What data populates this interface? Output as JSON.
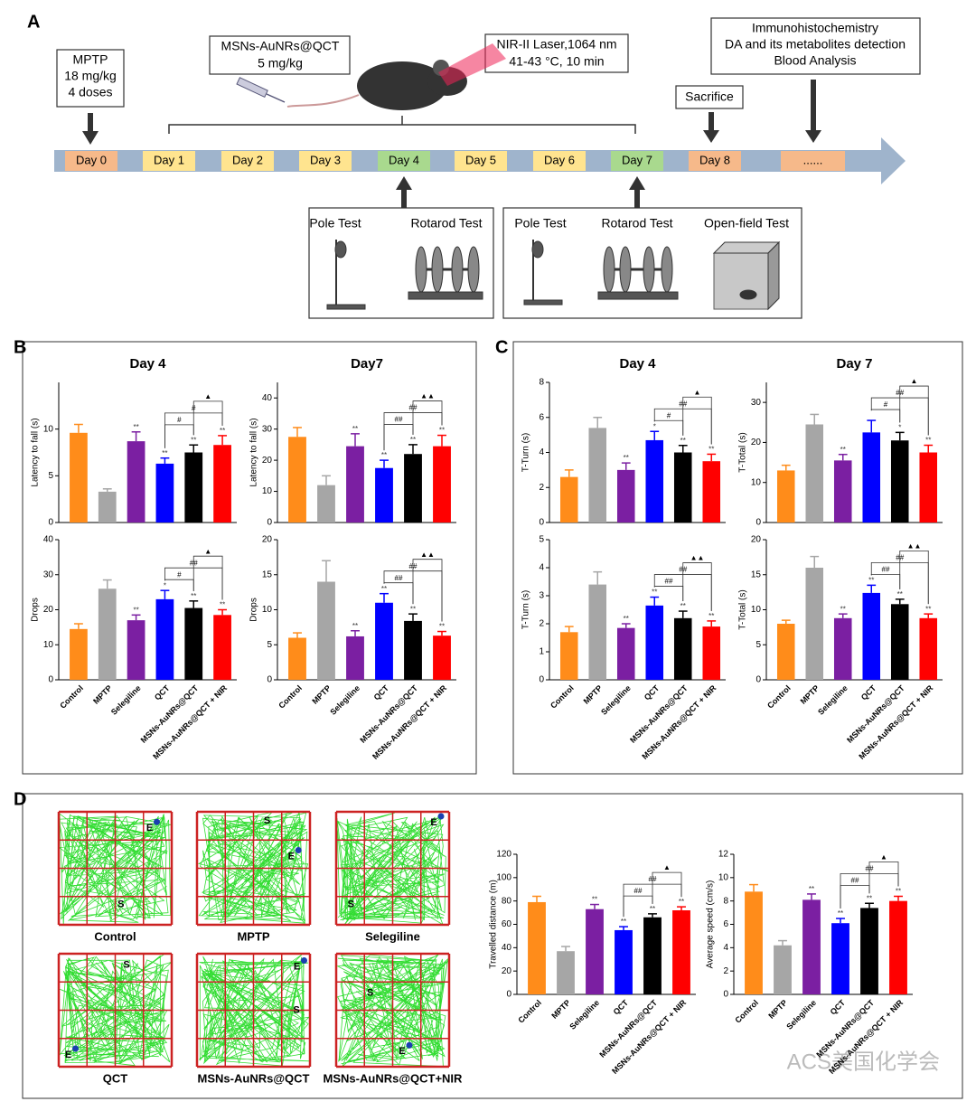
{
  "panel_labels": [
    "A",
    "B",
    "C",
    "D"
  ],
  "timeline": {
    "days": [
      "Day 0",
      "Day 1",
      "Day 2",
      "Day 3",
      "Day 4",
      "Day 5",
      "Day 6",
      "Day 7",
      "Day 8",
      "......"
    ],
    "mptp": [
      "MPTP",
      "18 mg/kg",
      "4 doses"
    ],
    "drug": [
      "MSNs-AuNRs@QCT",
      "5 mg/kg"
    ],
    "laser": [
      "NIR-II Laser,1064 nm",
      "41-43 °C, 10 min"
    ],
    "sacrifice": "Sacrifice",
    "analysis": [
      "Immunohistochemistry",
      "DA and its metabolites detection",
      "Blood Analysis"
    ],
    "tests_day4": [
      "Pole Test",
      "Rotarod Test"
    ],
    "tests_day7": [
      "Pole Test",
      "Rotarod Test",
      "Open-field Test"
    ]
  },
  "bar_colors": [
    "#ff8c1a",
    "#a6a6a6",
    "#7b1fa2",
    "#0000ff",
    "#000000",
    "#ff0000"
  ],
  "chart_data": [
    {
      "type": "bar",
      "title": "Day 4",
      "ylabel": "Latency to fall (s)",
      "values": [
        9.6,
        3.3,
        8.7,
        6.3,
        7.5,
        8.3
      ],
      "errors": [
        0.9,
        0.3,
        1,
        0.6,
        0.8,
        1
      ],
      "ylim": [
        0,
        15
      ],
      "yticks": [
        0,
        5,
        10
      ],
      "significance": [
        null,
        null,
        "**",
        "**",
        "**",
        "**"
      ],
      "brackets": [
        {
          "between": [
            3,
            4
          ],
          "label": "#"
        },
        {
          "between": [
            3,
            5
          ],
          "label": "#"
        },
        {
          "between": [
            4,
            5
          ],
          "label": "▲"
        }
      ]
    },
    {
      "type": "bar",
      "title": "Day7",
      "ylabel": "Latency to fall (s)",
      "values": [
        27.5,
        12,
        24.5,
        17.5,
        22,
        24.5
      ],
      "errors": [
        3,
        3,
        4,
        2.5,
        3,
        3.5
      ],
      "ylim": [
        0,
        45
      ],
      "yticks": [
        0,
        10,
        20,
        30,
        40
      ],
      "significance": [
        null,
        null,
        "**",
        "**",
        "**",
        "**"
      ],
      "brackets": [
        {
          "between": [
            3,
            4
          ],
          "label": "##"
        },
        {
          "between": [
            3,
            5
          ],
          "label": "##"
        },
        {
          "between": [
            4,
            5
          ],
          "label": "▲▲"
        }
      ]
    },
    {
      "type": "bar",
      "ylabel": "Drops",
      "categories": [
        "Control",
        "MPTP",
        "Selegiline",
        "QCT",
        "MSNs-AuNRs@QCT",
        "MSNs-AuNRs@QCT + NIR"
      ],
      "values": [
        14.5,
        26,
        17,
        23,
        20.5,
        18.5
      ],
      "errors": [
        1.5,
        2.5,
        1.5,
        2.5,
        2,
        1.5
      ],
      "ylim": [
        0,
        40
      ],
      "yticks": [
        0,
        10,
        20,
        30,
        40
      ],
      "significance": [
        null,
        null,
        "**",
        "*",
        "**",
        "**"
      ],
      "brackets": [
        {
          "between": [
            3,
            4
          ],
          "label": "#"
        },
        {
          "between": [
            3,
            5
          ],
          "label": "##"
        },
        {
          "between": [
            4,
            5
          ],
          "label": "▲"
        }
      ]
    },
    {
      "type": "bar",
      "ylabel": "Drops",
      "categories": [
        "Control",
        "MPTP",
        "Selegiline",
        "QCT",
        "MSNs-AuNRs@QCT",
        "MSNs-AuNRs@QCT + NIR"
      ],
      "values": [
        6,
        14,
        6.2,
        11,
        8.4,
        6.3
      ],
      "errors": [
        0.7,
        3,
        0.8,
        1.3,
        1,
        0.6
      ],
      "ylim": [
        0,
        20
      ],
      "yticks": [
        0,
        5,
        10,
        15,
        20
      ],
      "significance": [
        null,
        null,
        "**",
        "**",
        "**",
        "**"
      ],
      "brackets": [
        {
          "between": [
            3,
            4
          ],
          "label": "##"
        },
        {
          "between": [
            3,
            5
          ],
          "label": "##"
        },
        {
          "between": [
            4,
            5
          ],
          "label": "▲▲"
        }
      ]
    },
    {
      "type": "bar",
      "title": "Day 4",
      "ylabel": "T-Turn (s)",
      "values": [
        2.6,
        5.4,
        3,
        4.7,
        4,
        3.5
      ],
      "errors": [
        0.4,
        0.6,
        0.4,
        0.5,
        0.4,
        0.4
      ],
      "ylim": [
        0,
        8
      ],
      "yticks": [
        0,
        2,
        4,
        6,
        8
      ],
      "significance": [
        null,
        null,
        "**",
        "*",
        "**",
        "**"
      ],
      "brackets": [
        {
          "between": [
            3,
            4
          ],
          "label": "#"
        },
        {
          "between": [
            3,
            5
          ],
          "label": "##"
        },
        {
          "between": [
            4,
            5
          ],
          "label": "▲"
        }
      ]
    },
    {
      "type": "bar",
      "title": "Day 7",
      "ylabel": "T-Total (s)",
      "values": [
        13,
        24.5,
        15.5,
        22.5,
        20.5,
        17.5
      ],
      "errors": [
        1.3,
        2.5,
        1.5,
        3,
        2,
        1.8
      ],
      "ylim": [
        0,
        35
      ],
      "yticks": [
        0,
        10,
        20,
        30
      ],
      "significance": [
        null,
        null,
        "**",
        null,
        "*",
        "**"
      ],
      "brackets": [
        {
          "between": [
            3,
            4
          ],
          "label": "#"
        },
        {
          "between": [
            3,
            5
          ],
          "label": "##"
        },
        {
          "between": [
            4,
            5
          ],
          "label": "▲"
        }
      ]
    },
    {
      "type": "bar",
      "ylabel": "T-Turn (s)",
      "categories": [
        "Control",
        "MPTP",
        "Selegiline",
        "QCT",
        "MSNs-AuNRs@QCT",
        "MSNs-AuNRs@QCT + NIR"
      ],
      "values": [
        1.7,
        3.4,
        1.85,
        2.65,
        2.2,
        1.9
      ],
      "errors": [
        0.2,
        0.45,
        0.15,
        0.3,
        0.25,
        0.2
      ],
      "ylim": [
        0,
        5
      ],
      "yticks": [
        0,
        1,
        2,
        3,
        4,
        5
      ],
      "significance": [
        null,
        null,
        "**",
        "**",
        "**",
        "**"
      ],
      "brackets": [
        {
          "between": [
            3,
            4
          ],
          "label": "##"
        },
        {
          "between": [
            3,
            5
          ],
          "label": "##"
        },
        {
          "between": [
            4,
            5
          ],
          "label": "▲▲"
        }
      ]
    },
    {
      "type": "bar",
      "ylabel": "T-Total (s)",
      "categories": [
        "Control",
        "MPTP",
        "Selegiline",
        "QCT",
        "MSNs-AuNRs@QCT",
        "MSNs-AuNRs@QCT + NIR"
      ],
      "values": [
        8,
        16,
        8.8,
        12.4,
        10.8,
        8.8
      ],
      "errors": [
        0.5,
        1.6,
        0.6,
        1.1,
        0.7,
        0.6
      ],
      "ylim": [
        0,
        20
      ],
      "yticks": [
        0,
        5,
        10,
        15,
        20
      ],
      "significance": [
        null,
        null,
        "**",
        "**",
        "**",
        "**"
      ],
      "brackets": [
        {
          "between": [
            3,
            4
          ],
          "label": "##"
        },
        {
          "between": [
            3,
            5
          ],
          "label": "##"
        },
        {
          "between": [
            4,
            5
          ],
          "label": "▲▲"
        }
      ]
    },
    {
      "type": "bar",
      "ylabel": "Travelled distance (m)",
      "categories": [
        "Control",
        "MPTP",
        "Selegiline",
        "QCT",
        "MSNs-AuNRs@QCT",
        "MSNs-AuNRs@QCT + NIR"
      ],
      "values": [
        79,
        37,
        73,
        55,
        66,
        72
      ],
      "errors": [
        5,
        4,
        4,
        3,
        3,
        3
      ],
      "ylim": [
        0,
        120
      ],
      "yticks": [
        0,
        20,
        40,
        60,
        80,
        100,
        120
      ],
      "significance": [
        null,
        null,
        "**",
        "**",
        "**",
        "**"
      ],
      "brackets": [
        {
          "between": [
            3,
            4
          ],
          "label": "##"
        },
        {
          "between": [
            3,
            5
          ],
          "label": "##"
        },
        {
          "between": [
            4,
            5
          ],
          "label": "▲"
        }
      ]
    },
    {
      "type": "bar",
      "ylabel": "Average speed (cm/s)",
      "categories": [
        "Control",
        "MPTP",
        "Selegiline",
        "QCT",
        "MSNs-AuNRs@QCT",
        "MSNs-AuNRs@QCT + NIR"
      ],
      "values": [
        8.8,
        4.2,
        8.1,
        6.1,
        7.4,
        8
      ],
      "errors": [
        0.6,
        0.4,
        0.5,
        0.4,
        0.4,
        0.4
      ],
      "ylim": [
        0,
        12
      ],
      "yticks": [
        0,
        2,
        4,
        6,
        8,
        10,
        12
      ],
      "significance": [
        null,
        null,
        "**",
        "**",
        "**",
        "**"
      ],
      "brackets": [
        {
          "between": [
            3,
            4
          ],
          "label": "##"
        },
        {
          "between": [
            3,
            5
          ],
          "label": "##"
        },
        {
          "between": [
            4,
            5
          ],
          "label": "▲"
        }
      ]
    }
  ],
  "tracks": [
    {
      "label": "Control",
      "start": "S",
      "end": "E"
    },
    {
      "label": "MPTP",
      "start": "S",
      "end": "E"
    },
    {
      "label": "Selegiline",
      "start": "S",
      "end": "E"
    },
    {
      "label": "QCT",
      "start": "S",
      "end": "E"
    },
    {
      "label": "MSNs-AuNRs@QCT",
      "start": "S",
      "end": "E"
    },
    {
      "label": "MSNs-AuNRs@QCT+NIR",
      "start": "S",
      "end": "E"
    }
  ],
  "watermark": "ACS美国化学会"
}
